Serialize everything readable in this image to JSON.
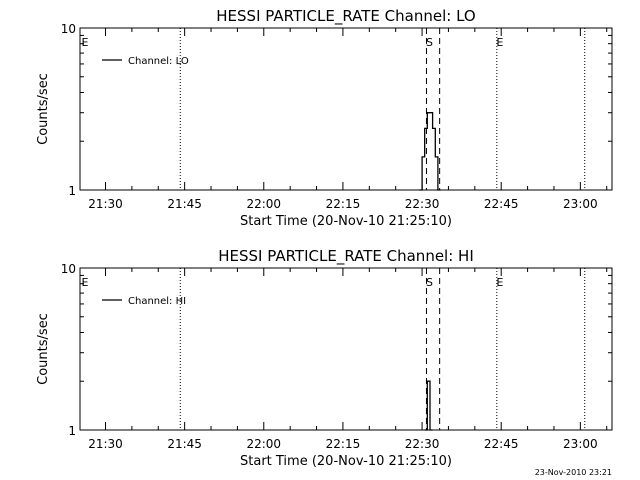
{
  "footer_timestamp": "23-Nov-2010 23:21",
  "chart_data": [
    {
      "type": "line",
      "title": "HESSI PARTICLE_RATE Channel: LO",
      "xlabel": "Start Time (20-Nov-10 21:25:10)",
      "ylabel": "Counts/sec",
      "yscale": "log",
      "ylim": [
        1,
        10
      ],
      "y_ticks": [
        "1",
        "10"
      ],
      "xlim": [
        "21:25:10",
        "23:06:00"
      ],
      "x_ticks": [
        "21:30",
        "21:45",
        "22:00",
        "22:15",
        "22:30",
        "22:45",
        "23:00"
      ],
      "grid": false,
      "legend": "top-left",
      "series": [
        {
          "name": "Channel: LO",
          "style": "histogram",
          "x": [
            "22:29:30",
            "22:30:00",
            "22:30:30",
            "22:31:00",
            "22:31:30",
            "22:32:00",
            "22:32:30",
            "22:33:00",
            "22:33:30"
          ],
          "y": [
            1,
            1.6,
            2.4,
            3.0,
            3.0,
            2.4,
            1.6,
            1,
            1
          ]
        }
      ],
      "vertical_lines": [
        {
          "x": "21:44:10",
          "style": "dotted",
          "label": ""
        },
        {
          "x": "22:30:50",
          "style": "dashed",
          "label": "S"
        },
        {
          "x": "22:33:20",
          "style": "dashed",
          "label": ""
        },
        {
          "x": "22:44:10",
          "style": "dotted",
          "label": "E"
        },
        {
          "x": "23:00:50",
          "style": "dotted",
          "label": ""
        }
      ],
      "edge_label": "E"
    },
    {
      "type": "line",
      "title": "HESSI PARTICLE_RATE Channel: HI",
      "xlabel": "Start Time (20-Nov-10 21:25:10)",
      "ylabel": "Counts/sec",
      "yscale": "log",
      "ylim": [
        1,
        10
      ],
      "y_ticks": [
        "1",
        "10"
      ],
      "xlim": [
        "21:25:10",
        "23:06:00"
      ],
      "x_ticks": [
        "21:30",
        "21:45",
        "22:00",
        "22:15",
        "22:30",
        "22:45",
        "23:00"
      ],
      "grid": false,
      "legend": "top-left",
      "series": [
        {
          "name": "Channel: HI",
          "style": "histogram",
          "x": [
            "22:30:30",
            "22:31:00",
            "22:31:30",
            "22:32:00"
          ],
          "y": [
            1,
            2.0,
            1,
            1
          ]
        }
      ],
      "vertical_lines": [
        {
          "x": "21:44:10",
          "style": "dotted",
          "label": ""
        },
        {
          "x": "22:30:50",
          "style": "dashed",
          "label": "S"
        },
        {
          "x": "22:33:20",
          "style": "dashed",
          "label": ""
        },
        {
          "x": "22:44:10",
          "style": "dotted",
          "label": "E"
        },
        {
          "x": "23:00:50",
          "style": "dotted",
          "label": ""
        }
      ],
      "edge_label": "E"
    }
  ]
}
